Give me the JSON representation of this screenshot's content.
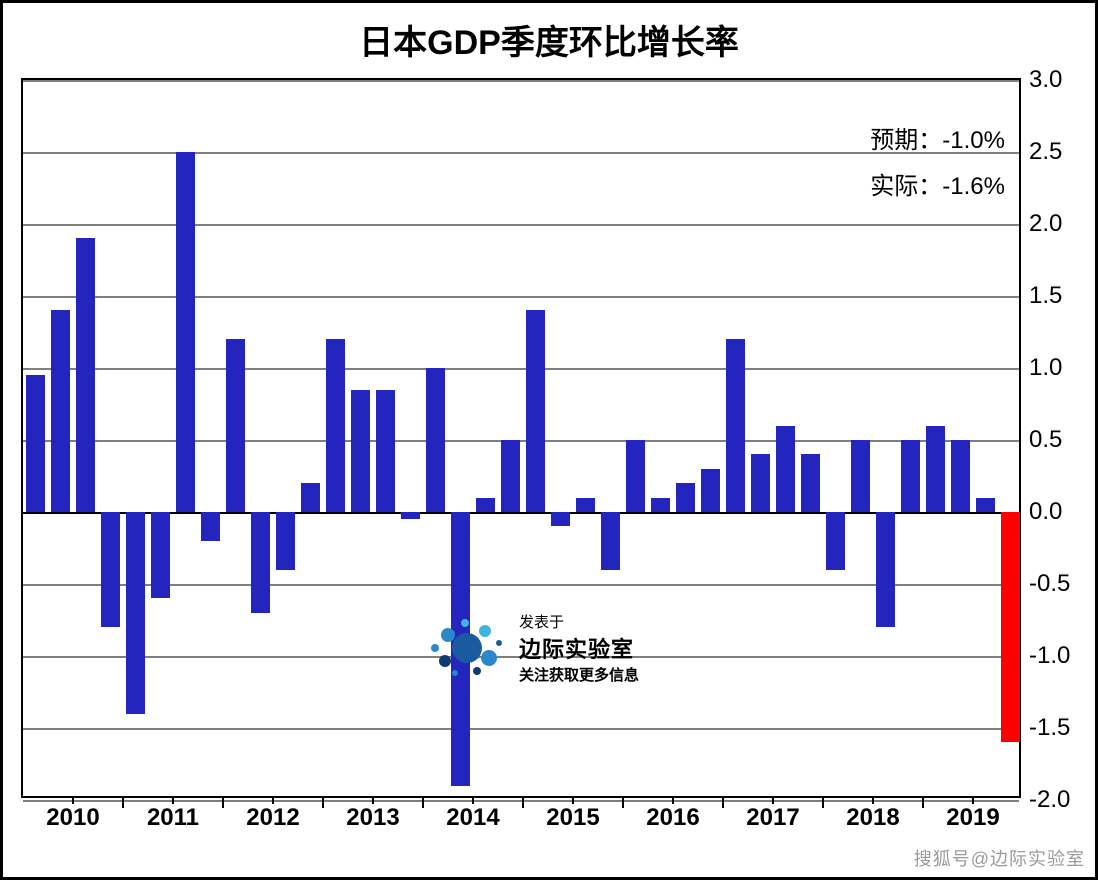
{
  "title": "日本GDP季度环比增长率",
  "title_fontsize": 34,
  "annotations": {
    "expected": "预期：-1.0%",
    "actual": "实际：-1.6%",
    "fontsize": 24
  },
  "watermark": {
    "line1": "发表于",
    "line2": "边际实验室",
    "line3": "关注获取更多信息",
    "logo_colors": [
      "#1a5aa0",
      "#2a88c9",
      "#3fb4e0",
      "#0f3c70"
    ]
  },
  "corner_credit": "搜狐号@边际实验室",
  "chart": {
    "type": "bar",
    "background_color": "#ffffff",
    "border_color": "#000000",
    "ylim": [
      -2.0,
      3.0
    ],
    "yticks": [
      -2.0,
      -1.5,
      -1.0,
      -0.5,
      0.0,
      0.5,
      1.0,
      1.5,
      2.0,
      2.5,
      3.0
    ],
    "ytick_labels": [
      "-2.0",
      "-1.5",
      "-1.0",
      "-0.5",
      "0.0",
      "0.5",
      "1.0",
      "1.5",
      "2.0",
      "2.5",
      "3.0"
    ],
    "label_fontsize": 24,
    "gridline_color_zero": "#000000",
    "gridline_color_other": "#7f7f7f",
    "gridline_width": 2,
    "bar_width": 0.78,
    "bar_color_normal": "#2424bf",
    "bar_color_highlight": "#ff0000",
    "years": [
      2010,
      2011,
      2012,
      2013,
      2014,
      2015,
      2016,
      2017,
      2018,
      2019
    ],
    "values": [
      0.95,
      1.4,
      1.9,
      -0.8,
      -1.4,
      -0.6,
      2.5,
      -0.2,
      1.2,
      -0.7,
      -0.4,
      0.2,
      1.2,
      0.85,
      0.85,
      -0.05,
      1.0,
      -1.9,
      0.1,
      0.5,
      1.4,
      -0.1,
      0.1,
      -0.4,
      0.5,
      0.1,
      0.2,
      0.3,
      1.2,
      0.4,
      0.6,
      0.4,
      -0.4,
      0.5,
      -0.8,
      0.5,
      0.6,
      0.5,
      0.1,
      -1.6
    ],
    "highlight_index": 39
  }
}
